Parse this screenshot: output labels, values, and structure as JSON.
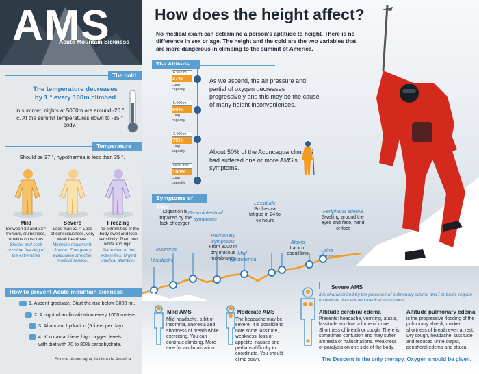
{
  "header": {
    "logo_text": "AMS",
    "logo_subtitle": "Acute Mountain Sickness",
    "title": "How does the height affect?",
    "intro": "No medical exam can determine a person's aptitude to height. There is no difference in sex or age. The height and the cold are the two variables that are more dangerous in climbing to the summit of America."
  },
  "cold": {
    "label": "The cold",
    "title_line1": "The temperature decreases",
    "title_line2": "by 1 ° every 100m climbed",
    "text": "In summer, nights at 5000m are around -20 ° c. At the summit temperatures down to -35 ° cody."
  },
  "temperature": {
    "label": "Temperature",
    "note": "Should be 37 °, hypothermia is less than 35 °.",
    "levels": [
      {
        "title": "Mild",
        "text": "Between 32 and 33 ° tremors, clumsiness, remains conscious.",
        "remedy": "Shelter and seek possible freezing of the extremities"
      },
      {
        "title": "Severe",
        "text": "Less than 32 °. Loss of consciousness, very weak heartbeat.",
        "remedy": "Minimize movement. Shelter. Emergency evacuation stretcher medical service."
      },
      {
        "title": "Freezing",
        "text": "The extremities of the body swell and lose sensitivity. Then turn white and rigid.",
        "remedy": "Place heat in the extremities. Urgent medical attention."
      }
    ]
  },
  "prevent": {
    "label": "How to prevent Acute mountain sickness",
    "items": [
      "1. Ascent graduate. Start the rise below 3000 mt.",
      "2. A night of acclimatization every 1000 meters.",
      "3. Abundant hydration (5 liters per day).",
      "4. You can achieve high oxygen levels",
      "with diet with 70 to 80% carbohydrate."
    ],
    "source": "Source: Aconcagua, la cima de America."
  },
  "altitude": {
    "label": "The Altitude",
    "boxes": [
      {
        "height": "6.962 m",
        "percent": "37%",
        "caption1": "Lung",
        "caption2": "capacity"
      },
      {
        "height": "5.000 m",
        "percent": "50%",
        "caption1": "Lung",
        "caption2": "capacity"
      },
      {
        "height": "3.000 m",
        "percent": "75%",
        "caption1": "Lung",
        "caption2": "capacity"
      },
      {
        "height": "Nivel mar",
        "percent": "100%",
        "caption1": "Lung",
        "caption2": "capacity"
      }
    ],
    "text1": "As we ascend, the air pressure and partial of oxygen decreases progressively and this may be the cause of many height inconveniences.",
    "text2": "About 50% of the Aconcagua climbers had suffered one or more AMS's symptoms."
  },
  "symptoms": {
    "label": "Symptoms of AMS",
    "items": [
      {
        "name": "Headache",
        "desc": ""
      },
      {
        "name": "Insomnia",
        "desc": ""
      },
      {
        "name": "",
        "desc": "Digestion is impaired by the lack of oxygen"
      },
      {
        "name": "Gastrointestinal symptoms",
        "desc": ""
      },
      {
        "name": "Pulmonary symptoms",
        "desc": "From 3000 m dry mucous membranes"
      },
      {
        "name": "Mild hypothermia",
        "desc": ""
      },
      {
        "name": "Lassitude",
        "desc": "Profresiva fatigue in 24 to 48 hours"
      },
      {
        "name": "Ataxia",
        "desc": "Lack of esquilibrio"
      },
      {
        "name": "Urine retention",
        "desc": ""
      },
      {
        "name": "Peripheral edema",
        "desc": "Swelling around the eyes and face, hand or foot"
      }
    ]
  },
  "boxes": {
    "mild": {
      "title": "Mild AMS",
      "text": "Mild headache, a bit of insomnia, anorexia and shortness of breath while exercising. You can continue climbing. More time for acclimatization"
    },
    "moderate": {
      "title": "Moderate AMS",
      "text": "The headache may be severe. It is possible to note some lassitude, weakness, loss of appetite, nausea and perhaps difficulty to coordinate. You should climb down."
    },
    "severe": {
      "title": "Severe AMS",
      "italic": "It is characterized by the presence of pulmonary edema and / or brain, require immediate descent and medical assistance",
      "cerebral_title": "Altitude cerebral edema",
      "cerebral_text": "Presents: headache, vomiting, ataxia, lassitude and low volume of urine. Shortness of breath or cough. There is sometimes confusion and may suffer amnesia or hallucinations. Weakness or paralysis on one side of the body.",
      "pulmonary_title": "Altitude pulmonary edema",
      "pulmonary_text": "is the progressive flooding of the pulmonary alveoli, marked shortness of breath even at rest. Dry cough, headache, lassitude and reduced urine output, peripheral edema and ataxia.",
      "therapy": "The Descent is the only therapy. Oxygen should be given."
    }
  },
  "colors": {
    "accent": "#5a9fd0",
    "dark": "#2e3a45",
    "orange": "#f39a22",
    "climber_red": "#d42a1e"
  }
}
